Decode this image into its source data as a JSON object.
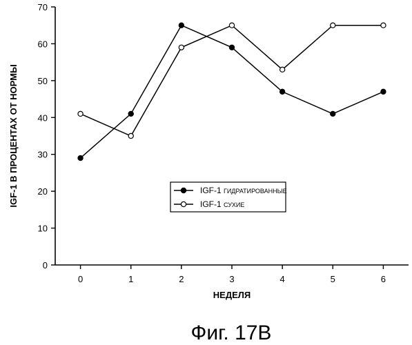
{
  "chart_data": {
    "type": "line",
    "title": "",
    "xlabel": "НЕДЕЛЯ",
    "ylabel": "IGF-1 В ПРОЦЕНТАХ ОТ НОРМЫ",
    "x": [
      0,
      1,
      2,
      3,
      4,
      5,
      6
    ],
    "xlim": [
      -0.5,
      6.5
    ],
    "ylim": [
      0,
      70
    ],
    "yticks": [
      0,
      10,
      20,
      30,
      40,
      50,
      60,
      70
    ],
    "grid": false,
    "legend_position": "center-right",
    "series": [
      {
        "name": "IGF-1 ГИДРАТИРОВАННЫЕ",
        "name_main": "IGF-1",
        "name_suffix": "ГИДРАТИРОВАННЫЕ",
        "marker": "filled-circle",
        "values": [
          29,
          41,
          65,
          59,
          47,
          41,
          47
        ]
      },
      {
        "name": "IGF-1 СУХИЕ",
        "name_main": "IGF-1",
        "name_suffix": "СУХИЕ",
        "marker": "open-circle",
        "values": [
          41,
          35,
          59,
          65,
          53,
          65,
          65
        ]
      }
    ]
  },
  "caption": "Фиг. 17В"
}
